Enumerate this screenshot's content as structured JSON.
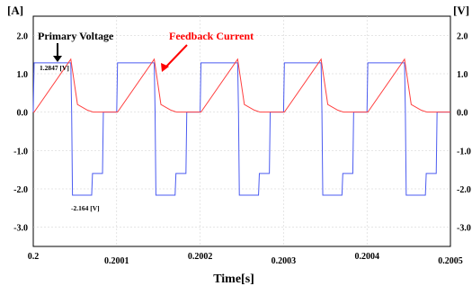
{
  "chart_data": {
    "type": "line",
    "xlabel": "Time[s]",
    "y_left_unit": "[A]",
    "y_right_unit": "[V]",
    "x_ticks": [
      "0.2",
      "0.2001",
      "0.2002",
      "0.2003",
      "0.2004",
      "0.2005"
    ],
    "y_ticks": [
      "2.0",
      "1.0",
      "0.0",
      "-1.0",
      "-2.0",
      "-3.0"
    ],
    "xlim": [
      0.2,
      0.2005
    ],
    "ylim": [
      -3.5,
      2.5
    ],
    "grid": true,
    "annotations": {
      "primary_voltage_label": "Primary Voltage",
      "feedback_current_label": "Feedback Current",
      "positive_peak_value": "1.2847 [V]",
      "negative_peak_value": "-2.164 [V]"
    },
    "series": [
      {
        "name": "Primary Voltage",
        "color": "#4b5bf0",
        "x": [
          0.2,
          0.200001,
          0.200045,
          0.200046,
          0.200047,
          0.20007,
          0.200071,
          0.200072,
          0.200083,
          0.200084,
          0.2001,
          0.200101,
          0.200145,
          0.200146,
          0.200147,
          0.20017,
          0.200171,
          0.200172,
          0.200183,
          0.200184,
          0.2002,
          0.200201,
          0.200245,
          0.200246,
          0.200247,
          0.20027,
          0.200271,
          0.200272,
          0.200283,
          0.200284,
          0.2003,
          0.200301,
          0.200345,
          0.200346,
          0.200347,
          0.20037,
          0.200371,
          0.200372,
          0.200383,
          0.200384,
          0.2004,
          0.200401,
          0.200445,
          0.200446,
          0.200447,
          0.20047,
          0.200471,
          0.200472,
          0.200483,
          0.200484,
          0.2005
        ],
        "y": [
          0.0,
          1.2847,
          1.2847,
          0.0,
          -2.164,
          -2.164,
          -1.6,
          -1.6,
          -1.6,
          0.0,
          0.0,
          1.2847,
          1.2847,
          0.0,
          -2.164,
          -2.164,
          -1.6,
          -1.6,
          -1.6,
          0.0,
          0.0,
          1.2847,
          1.2847,
          0.0,
          -2.164,
          -2.164,
          -1.6,
          -1.6,
          -1.6,
          0.0,
          0.0,
          1.2847,
          1.2847,
          0.0,
          -2.164,
          -2.164,
          -1.6,
          -1.6,
          -1.6,
          0.0,
          0.0,
          1.2847,
          1.2847,
          0.0,
          -2.164,
          -2.164,
          -1.6,
          -1.6,
          -1.6,
          0.0,
          0.0
        ]
      },
      {
        "name": "Feedback Current",
        "color": "#ff4040",
        "x": [
          0.2,
          0.200001,
          0.200045,
          0.200053,
          0.200065,
          0.200072,
          0.200083,
          0.2001,
          0.200101,
          0.200145,
          0.200153,
          0.200165,
          0.200172,
          0.200183,
          0.2002,
          0.200201,
          0.200245,
          0.200253,
          0.200265,
          0.200272,
          0.200283,
          0.2003,
          0.200301,
          0.200345,
          0.200353,
          0.200365,
          0.200372,
          0.200383,
          0.2004,
          0.200401,
          0.200445,
          0.200453,
          0.200465,
          0.200472,
          0.200483,
          0.2005
        ],
        "y": [
          0.0,
          0.0,
          1.38,
          0.2,
          0.05,
          0.0,
          0.0,
          0.0,
          0.0,
          1.38,
          0.2,
          0.05,
          0.0,
          0.0,
          0.0,
          0.0,
          1.38,
          0.2,
          0.05,
          0.0,
          0.0,
          0.0,
          0.0,
          1.38,
          0.2,
          0.05,
          0.0,
          0.0,
          0.0,
          0.0,
          1.38,
          0.2,
          0.05,
          0.0,
          0.0,
          0.0
        ]
      }
    ]
  }
}
